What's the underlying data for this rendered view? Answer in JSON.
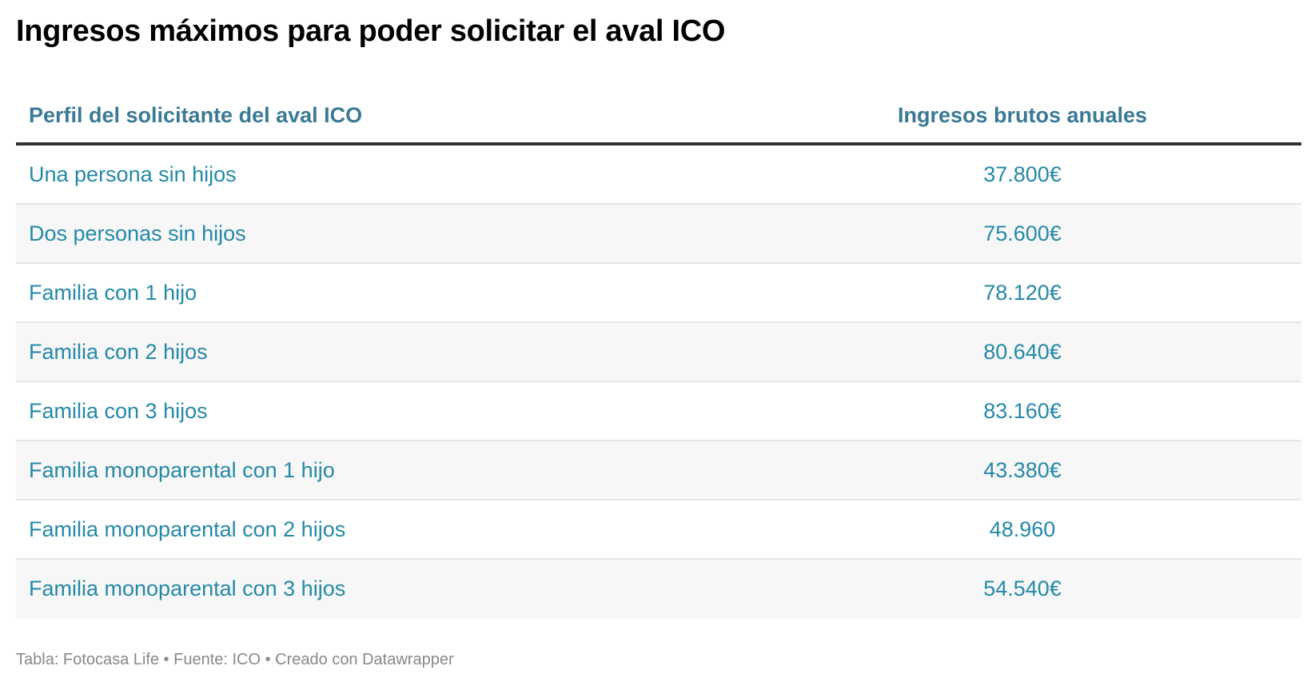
{
  "title": "Ingresos máximos para poder solicitar el aval ICO",
  "table": {
    "headers": [
      "Perfil del solicitante del aval ICO",
      "Ingresos brutos anuales"
    ],
    "rows": [
      [
        "Una persona sin hijos",
        "37.800€"
      ],
      [
        "Dos personas sin hijos",
        "75.600€"
      ],
      [
        "Familia con 1 hijo",
        "78.120€"
      ],
      [
        "Familia con 2 hijos",
        "80.640€"
      ],
      [
        "Familia con 3 hijos",
        "83.160€"
      ],
      [
        "Familia monoparental con 1 hijo",
        "43.380€"
      ],
      [
        "Familia monoparental con 2 hijos",
        "48.960"
      ],
      [
        "Familia monoparental con 3 hijos",
        "54.540€"
      ]
    ]
  },
  "footer": "Tabla: Fotocasa Life • Fuente: ICO • Creado con Datawrapper",
  "colors": {
    "header_text": "#3a7a96",
    "cell_text": "#2489a8",
    "header_rule": "#333333",
    "alt_row": "#f7f7f7"
  },
  "chart_data": {
    "type": "table",
    "title": "Ingresos máximos para poder solicitar el aval ICO",
    "columns": [
      "Perfil del solicitante del aval ICO",
      "Ingresos brutos anuales"
    ],
    "categories": [
      "Una persona sin hijos",
      "Dos personas sin hijos",
      "Familia con 1 hijo",
      "Familia con 2 hijos",
      "Familia con 3 hijos",
      "Familia monoparental con 1 hijo",
      "Familia monoparental con 2 hijos",
      "Familia monoparental con 3 hijos"
    ],
    "values": [
      37800,
      75600,
      78120,
      80640,
      83160,
      43380,
      48960,
      54540
    ],
    "unit": "€",
    "source": "Tabla: Fotocasa Life • Fuente: ICO • Creado con Datawrapper"
  }
}
